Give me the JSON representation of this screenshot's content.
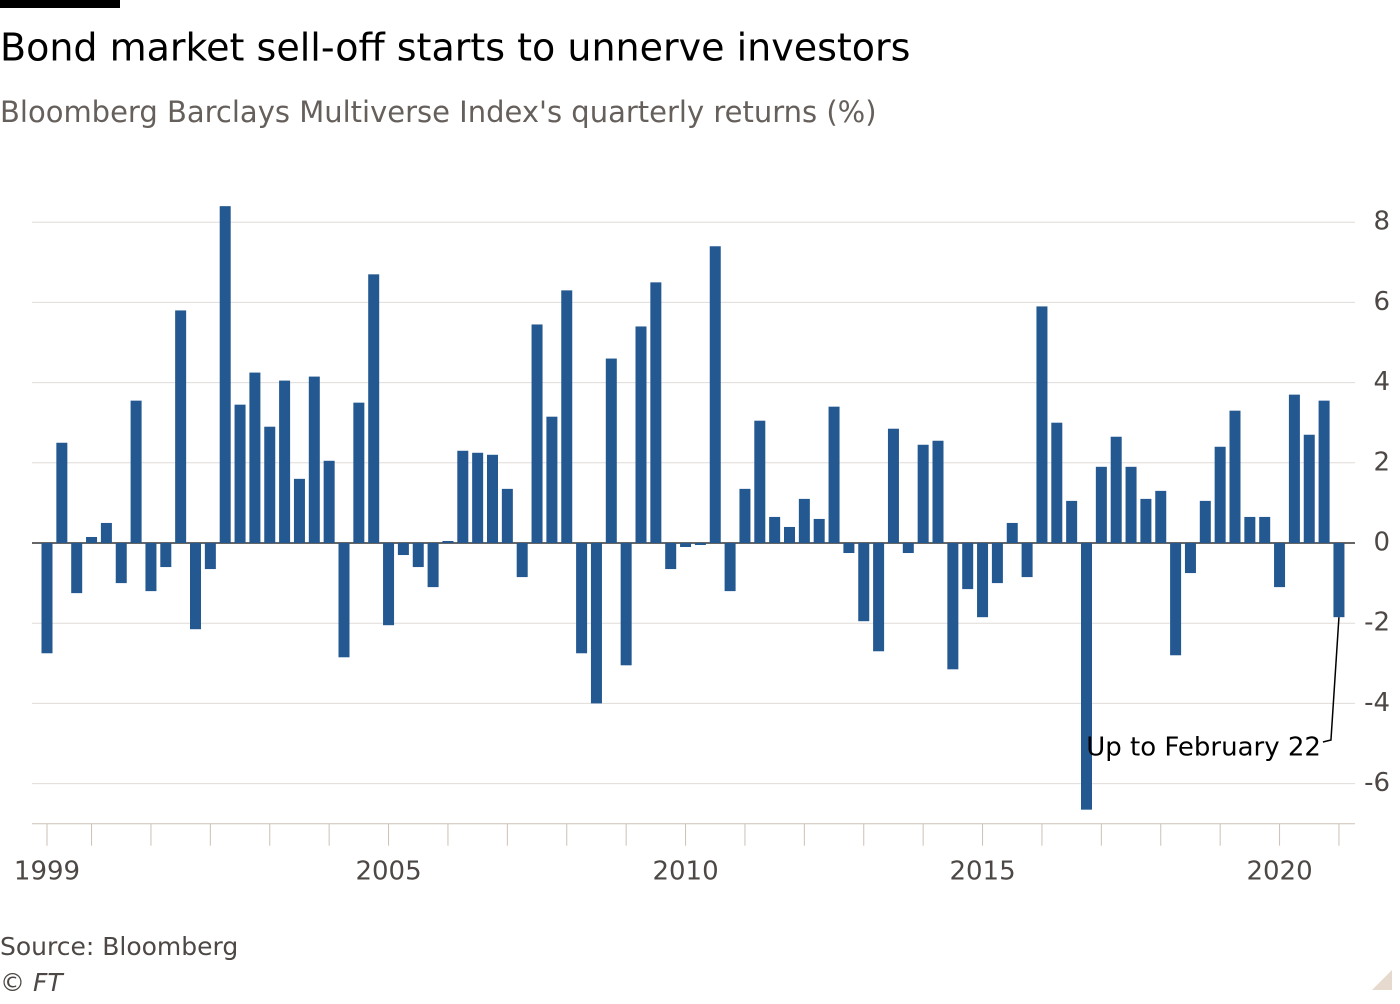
{
  "chart_data": {
    "type": "bar",
    "title": "Bond market sell-off starts to unnerve investors",
    "subtitle": "Bloomberg Barclays Multiverse Index's quarterly returns (%)",
    "source": "Source: Bloomberg",
    "credit": "© FT",
    "annotation": "Up to February 22",
    "color": "#245891",
    "grid": true,
    "categories": [
      "1999",
      null,
      null,
      null,
      null,
      null,
      null,
      null,
      null,
      null,
      null,
      null,
      null,
      null,
      null,
      null,
      null,
      null,
      null,
      null,
      null,
      null,
      null,
      "2005",
      null,
      null,
      null,
      null,
      null,
      null,
      null,
      null,
      null,
      null,
      null,
      null,
      null,
      null,
      null,
      null,
      null,
      null,
      null,
      "2010",
      null,
      null,
      null,
      null,
      null,
      null,
      null,
      null,
      null,
      null,
      null,
      null,
      null,
      null,
      null,
      null,
      null,
      null,
      null,
      "2015",
      null,
      null,
      null,
      null,
      null,
      null,
      null,
      null,
      null,
      null,
      null,
      null,
      null,
      null,
      null,
      null,
      null,
      null,
      null,
      "2020",
      null,
      null,
      null,
      null
    ],
    "values": [
      -2.75,
      2.5,
      -1.25,
      0.15,
      0.5,
      -1.0,
      3.55,
      -1.2,
      -0.6,
      5.8,
      -2.15,
      -0.65,
      8.4,
      3.45,
      4.25,
      2.9,
      4.05,
      1.6,
      4.15,
      2.05,
      -2.85,
      3.5,
      6.7,
      -2.05,
      -0.3,
      -0.6,
      -1.1,
      0.05,
      2.3,
      2.25,
      2.2,
      1.35,
      -0.85,
      5.45,
      3.15,
      6.3,
      -2.75,
      -4.0,
      4.6,
      -3.05,
      5.4,
      6.5,
      -0.65,
      -0.1,
      -0.05,
      7.4,
      -1.2,
      1.35,
      3.05,
      0.65,
      0.4,
      1.1,
      0.6,
      3.4,
      -0.25,
      -1.95,
      -2.7,
      2.85,
      -0.25,
      2.45,
      2.55,
      -3.15,
      -1.15,
      -1.85,
      -1.0,
      0.5,
      -0.85,
      5.9,
      3.0,
      1.05,
      -6.65,
      1.9,
      2.65,
      1.9,
      1.1,
      1.3,
      -2.8,
      -0.75,
      1.05,
      2.4,
      3.3,
      0.65,
      0.65,
      -1.1,
      3.7,
      2.7,
      3.55,
      -1.85
    ],
    "ylim": [
      -7,
      8.5
    ],
    "yticks": [
      -6,
      -4,
      -2,
      0,
      2,
      4,
      6,
      8
    ]
  }
}
